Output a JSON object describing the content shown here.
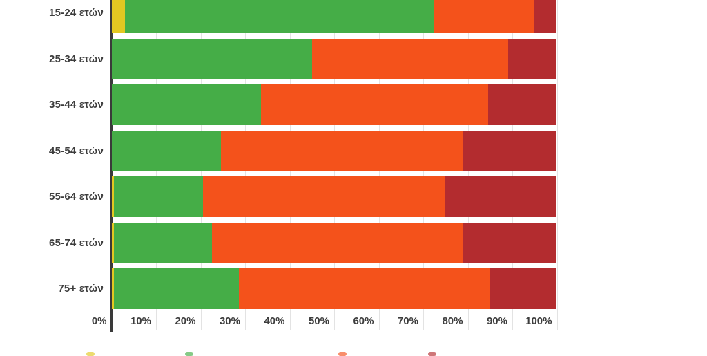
{
  "chart_data": {
    "type": "bar",
    "orientation": "horizontal",
    "stacked": true,
    "unit": "percent",
    "title": "",
    "categories": [
      "15-24 ετών",
      "25-34 ετών",
      "35-44 ετών",
      "45-54 ετών",
      "55-64 ετών",
      "65-74 ετών",
      "75+ ετών"
    ],
    "series": [
      {
        "name": "yellow",
        "color": "#e2c822",
        "values": [
          3,
          0,
          0,
          0,
          0.5,
          0.5,
          0.5
        ]
      },
      {
        "name": "green",
        "color": "#45ad47",
        "values": [
          69.5,
          45,
          33.5,
          24.5,
          20,
          22,
          28
        ]
      },
      {
        "name": "orange",
        "color": "#f4521b",
        "values": [
          22.5,
          44,
          51,
          54.5,
          54.5,
          56.5,
          56.5
        ]
      },
      {
        "name": "dark-red",
        "color": "#b32c2f",
        "values": [
          5,
          11,
          15.5,
          21,
          25,
          21,
          15
        ]
      }
    ],
    "x_axis": {
      "min": 0,
      "max": 100,
      "tick_labels": [
        "0%",
        "10%",
        "20%",
        "30%",
        "40%",
        "50%",
        "60%",
        "70%",
        "80%",
        "90%",
        "100%"
      ]
    },
    "grid": "vertical gridlines every 10%",
    "legend_position": "bottom (swatches cut off at image edge, labels not visible)",
    "notes": "top bar (15-24 ετών) is partially cut off at the top edge of the image"
  },
  "colors": {
    "background": "#ffffff",
    "axis_line": "#3a3a3a",
    "gridline": "#e3e3e3",
    "label_text": "#3d3d3d"
  }
}
